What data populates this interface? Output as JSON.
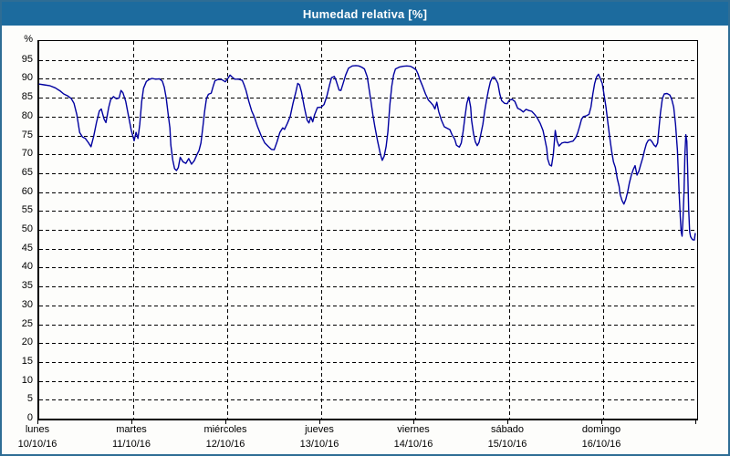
{
  "window": {
    "title": "Humedad relativa [%]"
  },
  "colors": {
    "titlebar_bg": "#1C6B9E",
    "frame_border": "#2E6D95",
    "background": "#FDFDFB",
    "line": "#0000A0",
    "grid": "#000000",
    "text": "#000000"
  },
  "chart_data": {
    "type": "line",
    "title": "Humedad relativa [%]",
    "ylabel": "%",
    "xlabel": "",
    "ylim": [
      0,
      100
    ],
    "ytick_step": 5,
    "ytick_labels": [
      "0",
      "5",
      "10",
      "15",
      "20",
      "25",
      "30",
      "35",
      "40",
      "45",
      "50",
      "55",
      "60",
      "65",
      "70",
      "75",
      "80",
      "85",
      "90",
      "95"
    ],
    "grid": "dashed",
    "legend": "none",
    "x_days": [
      {
        "name": "lunes",
        "date": "10/10/16"
      },
      {
        "name": "martes",
        "date": "11/10/16"
      },
      {
        "name": "miércoles",
        "date": "12/10/16"
      },
      {
        "name": "jueves",
        "date": "13/10/16"
      },
      {
        "name": "viernes",
        "date": "14/10/16"
      },
      {
        "name": "sábado",
        "date": "15/10/16"
      },
      {
        "name": "domingo",
        "date": "16/10/16"
      }
    ],
    "series": [
      {
        "name": "Humedad relativa",
        "unit": "%",
        "color": "#0000A0",
        "x_unit": "days_from_monday_00h",
        "points": [
          [
            0,
            88.6
          ],
          [
            0.05,
            88.4
          ],
          [
            0.11,
            88.2
          ],
          [
            0.17,
            87.6
          ],
          [
            0.22,
            86.8
          ],
          [
            0.26,
            86
          ],
          [
            0.3,
            85.5
          ],
          [
            0.34,
            84.8
          ],
          [
            0.37,
            83.5
          ],
          [
            0.4,
            80.5
          ],
          [
            0.43,
            75.8
          ],
          [
            0.46,
            74.6
          ],
          [
            0.49,
            74.2
          ],
          [
            0.52,
            73.2
          ],
          [
            0.55,
            72
          ],
          [
            0.58,
            74.8
          ],
          [
            0.61,
            78.5
          ],
          [
            0.64,
            81.5
          ],
          [
            0.66,
            82
          ],
          [
            0.69,
            79.3
          ],
          [
            0.71,
            78.4
          ],
          [
            0.74,
            82.5
          ],
          [
            0.76,
            84.5
          ],
          [
            0.79,
            85.3
          ],
          [
            0.82,
            84.7
          ],
          [
            0.85,
            84.9
          ],
          [
            0.87,
            86.9
          ],
          [
            0.89,
            86.3
          ],
          [
            0.92,
            84
          ],
          [
            0.95,
            80.2
          ],
          [
            0.98,
            76.3
          ],
          [
            1,
            74.5
          ],
          [
            1.01,
            73.6
          ],
          [
            1.03,
            75.8
          ],
          [
            1.05,
            74.2
          ],
          [
            1.07,
            78
          ],
          [
            1.09,
            84
          ],
          [
            1.11,
            87.5
          ],
          [
            1.14,
            89.3
          ],
          [
            1.17,
            89.8
          ],
          [
            1.2,
            90.1
          ],
          [
            1.24,
            89.9
          ],
          [
            1.28,
            90
          ],
          [
            1.31,
            89.4
          ],
          [
            1.33,
            87.8
          ],
          [
            1.35,
            85
          ],
          [
            1.37,
            81
          ],
          [
            1.39,
            77
          ],
          [
            1.4,
            72.5
          ],
          [
            1.42,
            68.5
          ],
          [
            1.44,
            66.2
          ],
          [
            1.46,
            65.7
          ],
          [
            1.48,
            66.5
          ],
          [
            1.5,
            69.2
          ],
          [
            1.53,
            68
          ],
          [
            1.56,
            67.6
          ],
          [
            1.59,
            68.9
          ],
          [
            1.62,
            67.4
          ],
          [
            1.65,
            68.3
          ],
          [
            1.68,
            70
          ],
          [
            1.7,
            71
          ],
          [
            1.72,
            73
          ],
          [
            1.74,
            77
          ],
          [
            1.76,
            81.5
          ],
          [
            1.78,
            84.8
          ],
          [
            1.8,
            85.9
          ],
          [
            1.83,
            86.2
          ],
          [
            1.85,
            88
          ],
          [
            1.87,
            89.5
          ],
          [
            1.9,
            89.8
          ],
          [
            1.94,
            89.8
          ],
          [
            1.98,
            89.2
          ],
          [
            2.01,
            90.2
          ],
          [
            2.03,
            91
          ],
          [
            2.05,
            90.5
          ],
          [
            2.08,
            89.9
          ],
          [
            2.12,
            89.9
          ],
          [
            2.16,
            89.6
          ],
          [
            2.18,
            88.4
          ],
          [
            2.2,
            86.9
          ],
          [
            2.23,
            84
          ],
          [
            2.26,
            81.5
          ],
          [
            2.29,
            79.8
          ],
          [
            2.32,
            77.5
          ],
          [
            2.36,
            75
          ],
          [
            2.4,
            73
          ],
          [
            2.44,
            72
          ],
          [
            2.47,
            71.3
          ],
          [
            2.5,
            71.2
          ],
          [
            2.53,
            73.3
          ],
          [
            2.56,
            75.8
          ],
          [
            2.59,
            77
          ],
          [
            2.61,
            76.6
          ],
          [
            2.64,
            78.2
          ],
          [
            2.67,
            80
          ],
          [
            2.7,
            83.5
          ],
          [
            2.73,
            86.5
          ],
          [
            2.75,
            88.8
          ],
          [
            2.77,
            88.4
          ],
          [
            2.79,
            86.5
          ],
          [
            2.82,
            82.5
          ],
          [
            2.85,
            79
          ],
          [
            2.87,
            78.3
          ],
          [
            2.89,
            79.9
          ],
          [
            2.91,
            78.6
          ],
          [
            2.93,
            80.5
          ],
          [
            2.96,
            82.4
          ],
          [
            3,
            82.5
          ],
          [
            3.03,
            83.2
          ],
          [
            3.06,
            85.4
          ],
          [
            3.09,
            88.5
          ],
          [
            3.11,
            90.3
          ],
          [
            3.14,
            90.6
          ],
          [
            3.16,
            89.4
          ],
          [
            3.19,
            87
          ],
          [
            3.21,
            86.9
          ],
          [
            3.23,
            88.5
          ],
          [
            3.26,
            91
          ],
          [
            3.29,
            92.8
          ],
          [
            3.33,
            93.4
          ],
          [
            3.37,
            93.5
          ],
          [
            3.4,
            93.4
          ],
          [
            3.43,
            93.1
          ],
          [
            3.46,
            92.6
          ],
          [
            3.49,
            90.5
          ],
          [
            3.52,
            85.5
          ],
          [
            3.55,
            80.5
          ],
          [
            3.57,
            77.5
          ],
          [
            3.6,
            73.5
          ],
          [
            3.63,
            70
          ],
          [
            3.65,
            68.4
          ],
          [
            3.67,
            69.5
          ],
          [
            3.69,
            72
          ],
          [
            3.71,
            76
          ],
          [
            3.73,
            83
          ],
          [
            3.75,
            88
          ],
          [
            3.77,
            91
          ],
          [
            3.79,
            92.6
          ],
          [
            3.83,
            93.1
          ],
          [
            3.87,
            93.3
          ],
          [
            3.91,
            93.4
          ],
          [
            3.95,
            93.3
          ],
          [
            3.98,
            92.9
          ],
          [
            4.01,
            92.4
          ],
          [
            4.03,
            91.3
          ],
          [
            4.05,
            89.8
          ],
          [
            4.08,
            88
          ],
          [
            4.11,
            86
          ],
          [
            4.14,
            84.4
          ],
          [
            4.17,
            83.6
          ],
          [
            4.19,
            83
          ],
          [
            4.21,
            82
          ],
          [
            4.23,
            83.8
          ],
          [
            4.25,
            81.3
          ],
          [
            4.28,
            79
          ],
          [
            4.31,
            77.3
          ],
          [
            4.34,
            76.9
          ],
          [
            4.37,
            76.5
          ],
          [
            4.39,
            75.3
          ],
          [
            4.42,
            74
          ],
          [
            4.44,
            72.4
          ],
          [
            4.47,
            71.9
          ],
          [
            4.49,
            73
          ],
          [
            4.51,
            76
          ],
          [
            4.53,
            80
          ],
          [
            4.55,
            83.5
          ],
          [
            4.57,
            85.2
          ],
          [
            4.59,
            82.5
          ],
          [
            4.6,
            79
          ],
          [
            4.62,
            75.5
          ],
          [
            4.64,
            73.3
          ],
          [
            4.66,
            72.3
          ],
          [
            4.68,
            73.2
          ],
          [
            4.7,
            75.5
          ],
          [
            4.72,
            78
          ],
          [
            4.74,
            81.5
          ],
          [
            4.76,
            84.5
          ],
          [
            4.78,
            87
          ],
          [
            4.8,
            89.2
          ],
          [
            4.82,
            90.3
          ],
          [
            4.84,
            90.5
          ],
          [
            4.86,
            89.7
          ],
          [
            4.88,
            88.8
          ],
          [
            4.9,
            86
          ],
          [
            4.92,
            84.2
          ],
          [
            4.95,
            83.5
          ],
          [
            4.98,
            83.4
          ],
          [
            5,
            84.3
          ],
          [
            5.03,
            84.6
          ],
          [
            5.06,
            84
          ],
          [
            5.09,
            82.2
          ],
          [
            5.12,
            81.8
          ],
          [
            5.15,
            81.2
          ],
          [
            5.18,
            81.9
          ],
          [
            5.21,
            81.6
          ],
          [
            5.24,
            81.4
          ],
          [
            5.27,
            80.6
          ],
          [
            5.3,
            79.6
          ],
          [
            5.33,
            78.2
          ],
          [
            5.36,
            76.3
          ],
          [
            5.38,
            74
          ],
          [
            5.4,
            71.5
          ],
          [
            5.41,
            68.8
          ],
          [
            5.43,
            67.2
          ],
          [
            5.45,
            66.9
          ],
          [
            5.47,
            70
          ],
          [
            5.49,
            76.3
          ],
          [
            5.51,
            73.5
          ],
          [
            5.53,
            72.2
          ],
          [
            5.56,
            73
          ],
          [
            5.59,
            73.2
          ],
          [
            5.62,
            73.1
          ],
          [
            5.65,
            73.3
          ],
          [
            5.68,
            73.5
          ],
          [
            5.71,
            74.5
          ],
          [
            5.73,
            75.8
          ],
          [
            5.75,
            77.5
          ],
          [
            5.77,
            79.3
          ],
          [
            5.79,
            80
          ],
          [
            5.82,
            80.2
          ],
          [
            5.85,
            80.6
          ],
          [
            5.87,
            82.5
          ],
          [
            5.89,
            86
          ],
          [
            5.91,
            88.8
          ],
          [
            5.93,
            90.5
          ],
          [
            5.95,
            91.2
          ],
          [
            5.97,
            90
          ],
          [
            5.99,
            88.8
          ],
          [
            6.01,
            85.8
          ],
          [
            6.03,
            82.5
          ],
          [
            6.05,
            78.5
          ],
          [
            6.07,
            74.5
          ],
          [
            6.09,
            70.8
          ],
          [
            6.11,
            68
          ],
          [
            6.13,
            66.5
          ],
          [
            6.15,
            63.5
          ],
          [
            6.17,
            61.5
          ],
          [
            6.18,
            59.5
          ],
          [
            6.2,
            57.8
          ],
          [
            6.22,
            56.8
          ],
          [
            6.24,
            58
          ],
          [
            6.26,
            60
          ],
          [
            6.28,
            62.5
          ],
          [
            6.3,
            64.5
          ],
          [
            6.32,
            66
          ],
          [
            6.34,
            67
          ],
          [
            6.36,
            64.5
          ],
          [
            6.38,
            65.5
          ],
          [
            6.4,
            67.3
          ],
          [
            6.42,
            69
          ],
          [
            6.44,
            71
          ],
          [
            6.46,
            72.8
          ],
          [
            6.48,
            73.7
          ],
          [
            6.5,
            73.9
          ],
          [
            6.52,
            73.3
          ],
          [
            6.54,
            72.5
          ],
          [
            6.56,
            72
          ],
          [
            6.58,
            73
          ],
          [
            6.59,
            76
          ],
          [
            6.61,
            81
          ],
          [
            6.63,
            84.8
          ],
          [
            6.65,
            86
          ],
          [
            6.68,
            86.1
          ],
          [
            6.71,
            85.7
          ],
          [
            6.73,
            84.5
          ],
          [
            6.75,
            82.5
          ],
          [
            6.77,
            78
          ],
          [
            6.79,
            71
          ],
          [
            6.8,
            65
          ],
          [
            6.81,
            59
          ],
          [
            6.82,
            53.5
          ],
          [
            6.83,
            49.5
          ],
          [
            6.84,
            48.3
          ],
          [
            6.85,
            53
          ],
          [
            6.86,
            60
          ],
          [
            6.87,
            70
          ],
          [
            6.88,
            75.2
          ],
          [
            6.89,
            73.5
          ],
          [
            6.9,
            65
          ],
          [
            6.91,
            55.5
          ],
          [
            6.92,
            49.5
          ],
          [
            6.93,
            48.2
          ],
          [
            6.95,
            47.4
          ],
          [
            6.97,
            47.3
          ],
          [
            6.98,
            49
          ]
        ]
      }
    ]
  }
}
